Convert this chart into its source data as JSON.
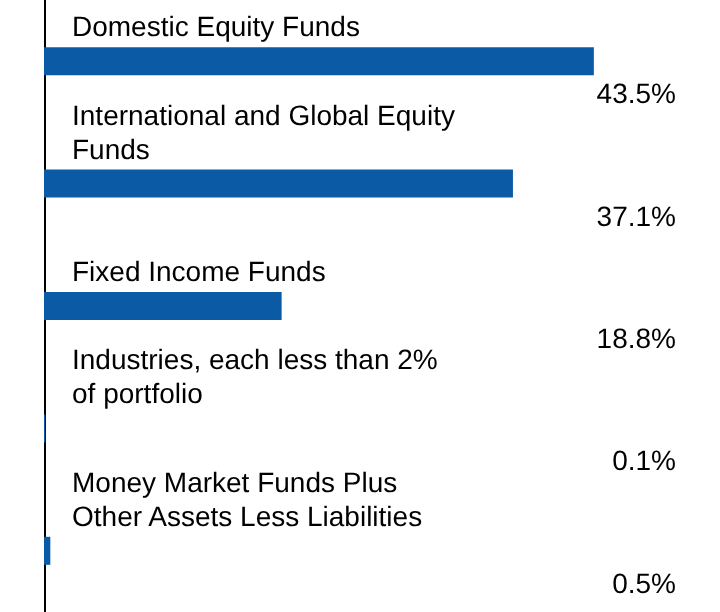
{
  "chart_data": {
    "type": "bar",
    "orientation": "horizontal",
    "categories": [
      "Domestic Equity Funds",
      "International and Global Equity Funds",
      "Fixed Income Funds",
      "Industries, each less than 2% of portfolio",
      "Money Market Funds Plus Other Assets Less Liabilities"
    ],
    "values": [
      43.5,
      37.1,
      18.8,
      0.1,
      0.5
    ],
    "value_labels": [
      "43.5%",
      "37.1%",
      "18.8%",
      "0.1%",
      "0.5%"
    ],
    "color": "#0b5aa5"
  }
}
